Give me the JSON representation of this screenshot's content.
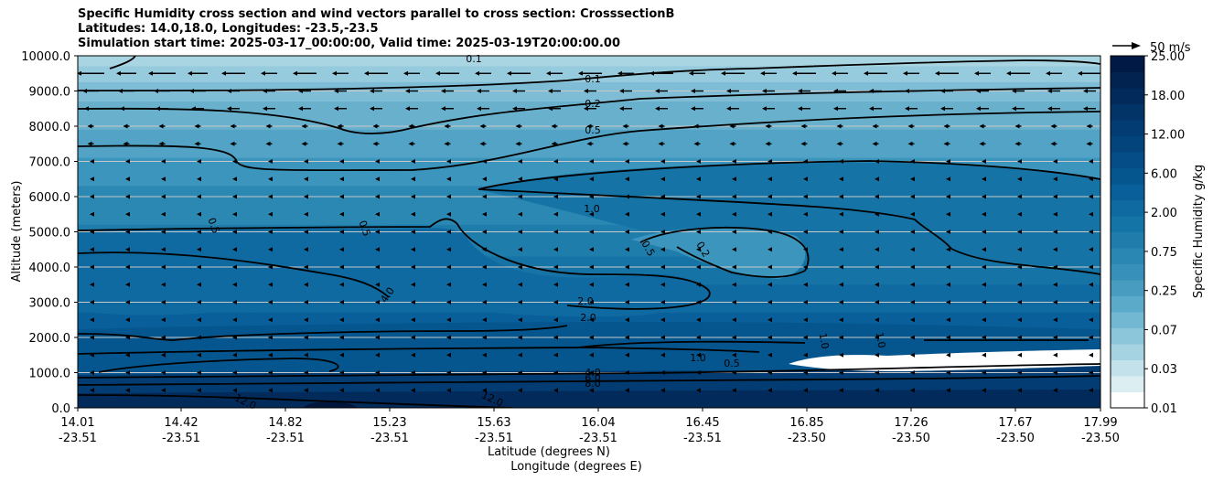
{
  "title_lines": [
    "Specific Humidity cross section and wind vectors parallel to cross section: CrosssectionB",
    "Latitudes: 14.0,18.0, Longitudes: -23.5,-23.5",
    "Simulation start time: 2025-03-17_00:00:00, Valid time: 2025-03-19T20:00:00.00"
  ],
  "chart_data": {
    "type": "heatmap",
    "title": "Specific Humidity cross section and wind vectors parallel to cross section: CrosssectionB",
    "ylabel": "Altitude (meters)",
    "xlabel_lines": [
      "Latitude (degrees N)",
      "Longitude (degrees E)"
    ],
    "ylim": [
      0,
      10000
    ],
    "yticks": [
      "0.0",
      "1000.0",
      "2000.0",
      "3000.0",
      "4000.0",
      "5000.0",
      "6000.0",
      "7000.0",
      "8000.0",
      "9000.0",
      "10000.0"
    ],
    "ytick_values": [
      0,
      1000,
      2000,
      3000,
      4000,
      5000,
      6000,
      7000,
      8000,
      9000,
      10000
    ],
    "grid": "horizontal",
    "xticks": [
      {
        "lat": "14.01",
        "lon": "-23.51"
      },
      {
        "lat": "14.42",
        "lon": "-23.51"
      },
      {
        "lat": "14.82",
        "lon": "-23.51"
      },
      {
        "lat": "15.23",
        "lon": "-23.51"
      },
      {
        "lat": "15.63",
        "lon": "-23.51"
      },
      {
        "lat": "16.04",
        "lon": "-23.51"
      },
      {
        "lat": "16.45",
        "lon": "-23.51"
      },
      {
        "lat": "16.85",
        "lon": "-23.50"
      },
      {
        "lat": "17.26",
        "lon": "-23.50"
      },
      {
        "lat": "17.67",
        "lon": "-23.50"
      },
      {
        "lat": "17.99",
        "lon": "-23.50"
      }
    ],
    "colorbar": {
      "label": "Specific Humidity g/kg",
      "levels": [
        "0.01",
        "0.03",
        "0.07",
        "0.25",
        "0.75",
        "2.00",
        "6.00",
        "12.00",
        "18.00",
        "25.00"
      ],
      "colors": [
        "#ffffff",
        "#ddeef2",
        "#c2e1ea",
        "#a6d3e2",
        "#8cc6da",
        "#72b8d2",
        "#5baac9",
        "#479cc0",
        "#3790b9",
        "#2a86b2",
        "#1f7cab",
        "#1574a6",
        "#0e6aa0",
        "#085f99",
        "#05568f",
        "#044d86",
        "#04447d",
        "#033c72",
        "#033467",
        "#022b5c",
        "#02224f",
        "#011a45"
      ]
    },
    "contour_labels": [
      "0.1",
      "0.1",
      "0.2",
      "0.5",
      "1.0",
      "0.5",
      "0.5",
      "0.5",
      "0.2",
      "4.0",
      "2.0",
      "2.0",
      "1.0",
      "1.0",
      "1.0",
      "0.5",
      "4.0",
      "6.0",
      "8.0",
      "12.0",
      "12.0"
    ],
    "quiver_key": {
      "label": "50 m/s",
      "value": 50
    },
    "colors": {
      "contour": "#000000",
      "arrow": "#000000",
      "grid": "#c8c8c8"
    }
  }
}
